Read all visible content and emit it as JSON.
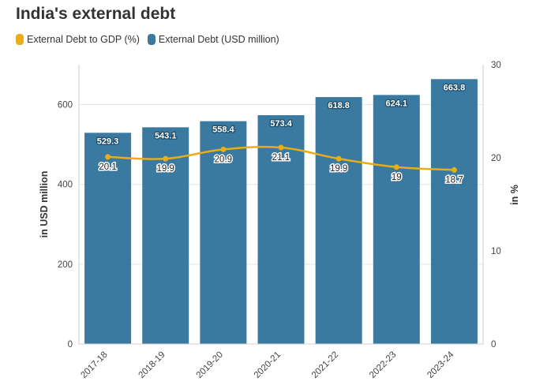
{
  "title": "India's external debt",
  "legend": {
    "items": [
      {
        "label": "External Debt to GDP (%)",
        "color": "#e8ad17"
      },
      {
        "label": "External Debt (USD million)",
        "color": "#3b7aa0"
      }
    ]
  },
  "chart_data": {
    "type": "bar",
    "title": "India's external debt",
    "categories": [
      "2017-18",
      "2018-19",
      "2019-20",
      "2020-21",
      "2021-22",
      "2022-23",
      "2023-24"
    ],
    "series": [
      {
        "name": "External Debt (USD million)",
        "type": "bar",
        "axis": "left",
        "color": "#3b7aa0",
        "values": [
          529.3,
          543.1,
          558.4,
          573.4,
          618.8,
          624.1,
          663.8
        ],
        "labels": [
          "529.3",
          "543.1",
          "558.4",
          "573.4",
          "618.8",
          "624.1",
          "663.8"
        ]
      },
      {
        "name": "External Debt to GDP (%)",
        "type": "line",
        "axis": "right",
        "color": "#e8ad17",
        "values": [
          20.1,
          19.9,
          20.9,
          21.1,
          19.9,
          19,
          18.7
        ],
        "labels": [
          "20.1",
          "19.9",
          "20.9",
          "21.1",
          "19.9",
          "19",
          "18.7"
        ]
      }
    ],
    "ylabel": "in USD million",
    "y2label": "in %",
    "ylim": [
      0,
      700
    ],
    "y2lim": [
      0,
      30
    ],
    "yticks": [
      "0",
      "200",
      "400",
      "600"
    ],
    "y2ticks": [
      "0",
      "10",
      "20",
      "30"
    ],
    "grid": true,
    "legend_position": "top-left"
  }
}
